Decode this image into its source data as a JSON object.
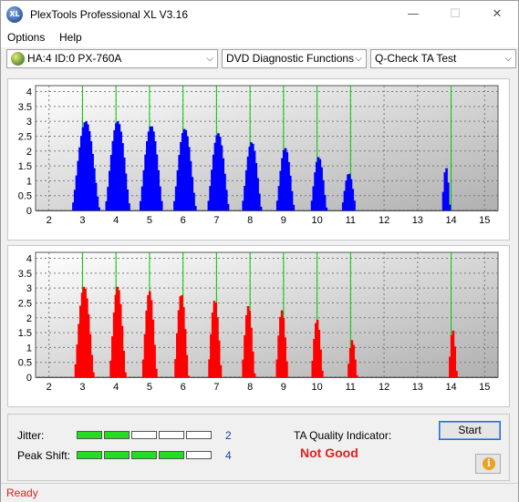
{
  "window": {
    "title": "PlexTools Professional XL V3.16",
    "icon_label": "XL",
    "minimize_glyph": "—",
    "maximize_glyph": "☐",
    "close_glyph": "✕"
  },
  "menu": {
    "options": "Options",
    "help": "Help"
  },
  "toolbar": {
    "drive": "HA:4 ID:0  PX-760A",
    "function": "DVD Diagnostic Functions",
    "test": "Q-Check TA Test"
  },
  "charts": {
    "bar_colors": [
      "#0000ff",
      "#ff0000"
    ],
    "grid_line_color": "#00cc00",
    "y_ticks": [
      "4",
      "3.5",
      "3",
      "2.5",
      "2",
      "1.5",
      "1",
      "0.5",
      "0"
    ],
    "x_ticks": [
      "2",
      "3",
      "4",
      "5",
      "6",
      "7",
      "8",
      "9",
      "10",
      "11",
      "12",
      "13",
      "14",
      "15"
    ],
    "green_lines": [
      3,
      4,
      5,
      6,
      7,
      8,
      9,
      10,
      11,
      14
    ]
  },
  "chart_data": [
    {
      "type": "bar",
      "series": [
        {
          "values_description_only": false
        }
      ],
      "x_range": [
        1.6,
        15.4
      ],
      "ylim": [
        0,
        4.2
      ],
      "peaks": [
        {
          "center": 3.1,
          "height": 3.0,
          "width": 0.42
        },
        {
          "center": 4.05,
          "height": 3.0,
          "width": 0.38
        },
        {
          "center": 5.05,
          "height": 2.85,
          "width": 0.36
        },
        {
          "center": 6.05,
          "height": 2.75,
          "width": 0.35
        },
        {
          "center": 7.05,
          "height": 2.6,
          "width": 0.33
        },
        {
          "center": 8.05,
          "height": 2.3,
          "width": 0.3
        },
        {
          "center": 9.05,
          "height": 2.1,
          "width": 0.28
        },
        {
          "center": 10.05,
          "height": 1.8,
          "width": 0.25
        },
        {
          "center": 10.95,
          "height": 1.25,
          "width": 0.22
        },
        {
          "center": 13.85,
          "height": 1.45,
          "width": 0.13
        }
      ]
    },
    {
      "type": "bar",
      "x_range": [
        1.6,
        15.4
      ],
      "ylim": [
        0,
        4.2
      ],
      "peaks": [
        {
          "center": 3.05,
          "height": 3.05,
          "width": 0.3
        },
        {
          "center": 4.05,
          "height": 3.05,
          "width": 0.25
        },
        {
          "center": 5.0,
          "height": 2.9,
          "width": 0.23
        },
        {
          "center": 5.95,
          "height": 2.8,
          "width": 0.22
        },
        {
          "center": 6.95,
          "height": 2.6,
          "width": 0.21
        },
        {
          "center": 7.95,
          "height": 2.4,
          "width": 0.2
        },
        {
          "center": 8.95,
          "height": 2.25,
          "width": 0.19
        },
        {
          "center": 10.0,
          "height": 1.95,
          "width": 0.18
        },
        {
          "center": 11.05,
          "height": 1.25,
          "width": 0.15
        },
        {
          "center": 14.05,
          "height": 1.6,
          "width": 0.13
        }
      ]
    }
  ],
  "metrics": {
    "jitter_label": "Jitter:",
    "jitter_level": 2,
    "jitter_value": "2",
    "peak_shift_label": "Peak Shift:",
    "peak_shift_level": 4,
    "peak_shift_value": "4",
    "segments_total": 5
  },
  "quality": {
    "label": "TA Quality Indicator:",
    "value": "Not Good"
  },
  "buttons": {
    "start": "Start",
    "info_glyph": "i"
  },
  "status": {
    "text": "Ready"
  }
}
